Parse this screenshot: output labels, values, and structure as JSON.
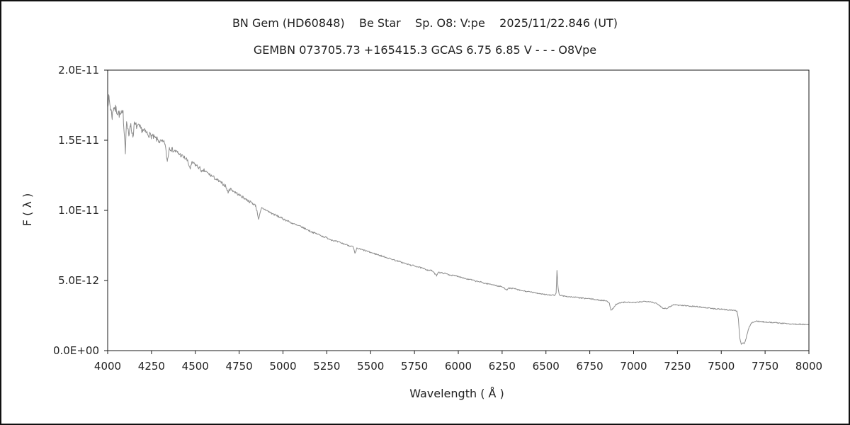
{
  "window": {
    "background": "#ffffff",
    "frame_border_color": "#111111"
  },
  "chart_data": {
    "type": "line",
    "title_line1": "BN Gem (HD60848)    Be Star    Sp. O8: V:pe    2025/11/22.846 (UT)",
    "title_line2": "GEMBN 073705.73 +165415.3 GCAS 6.75 6.85 V - - - O8Vpe",
    "xlabel": "Wavelength ( Å )",
    "ylabel": "F ( λ )",
    "xlim": [
      4000,
      8000
    ],
    "ylim_e12": [
      0,
      20
    ],
    "grid": false,
    "legend": "none",
    "line_color": "#8c8c8c",
    "axis_color": "#1a1a1a",
    "x_ticks": [
      4000,
      4250,
      4500,
      4750,
      5000,
      5250,
      5500,
      5750,
      6000,
      6250,
      6500,
      6750,
      7000,
      7250,
      7500,
      7750,
      8000
    ],
    "y_ticks": [
      {
        "value_e12": 0,
        "label": "0.0E+00"
      },
      {
        "value_e12": 5,
        "label": "5.0E-12"
      },
      {
        "value_e12": 10,
        "label": "1.0E-11"
      },
      {
        "value_e12": 15,
        "label": "1.5E-11"
      },
      {
        "value_e12": 20,
        "label": "2.0E-11"
      }
    ],
    "flux_unit_multiplier": 1e-12,
    "points_lambda_flux_e12": [
      [
        4000,
        17.7
      ],
      [
        4008,
        18.0
      ],
      [
        4016,
        17.3
      ],
      [
        4026,
        16.7
      ],
      [
        4034,
        17.4
      ],
      [
        4046,
        17.2
      ],
      [
        4058,
        17.0
      ],
      [
        4072,
        16.8
      ],
      [
        4088,
        16.9
      ],
      [
        4101,
        14.3
      ],
      [
        4108,
        16.4
      ],
      [
        4121,
        15.2
      ],
      [
        4128,
        16.2
      ],
      [
        4144,
        15.3
      ],
      [
        4152,
        16.1
      ],
      [
        4168,
        16.0
      ],
      [
        4182,
        15.9
      ],
      [
        4200,
        15.7
      ],
      [
        4226,
        15.5
      ],
      [
        4250,
        15.3
      ],
      [
        4276,
        15.1
      ],
      [
        4300,
        14.9
      ],
      [
        4326,
        14.8
      ],
      [
        4340,
        13.5
      ],
      [
        4352,
        14.5
      ],
      [
        4364,
        14.35
      ],
      [
        4388,
        14.2
      ],
      [
        4400,
        14.1
      ],
      [
        4426,
        13.85
      ],
      [
        4450,
        13.65
      ],
      [
        4471,
        13.0
      ],
      [
        4482,
        13.4
      ],
      [
        4500,
        13.25
      ],
      [
        4526,
        13.0
      ],
      [
        4542,
        12.7
      ],
      [
        4550,
        12.85
      ],
      [
        4576,
        12.6
      ],
      [
        4600,
        12.4
      ],
      [
        4626,
        12.15
      ],
      [
        4650,
        11.95
      ],
      [
        4672,
        11.75
      ],
      [
        4686,
        11.3
      ],
      [
        4700,
        11.55
      ],
      [
        4726,
        11.3
      ],
      [
        4750,
        11.1
      ],
      [
        4776,
        10.9
      ],
      [
        4800,
        10.7
      ],
      [
        4826,
        10.5
      ],
      [
        4844,
        10.35
      ],
      [
        4861,
        9.4
      ],
      [
        4878,
        10.15
      ],
      [
        4900,
        10.05
      ],
      [
        4926,
        9.85
      ],
      [
        4950,
        9.7
      ],
      [
        4976,
        9.55
      ],
      [
        5000,
        9.4
      ],
      [
        5026,
        9.25
      ],
      [
        5050,
        9.1
      ],
      [
        5076,
        8.95
      ],
      [
        5100,
        8.85
      ],
      [
        5126,
        8.7
      ],
      [
        5150,
        8.55
      ],
      [
        5176,
        8.4
      ],
      [
        5200,
        8.3
      ],
      [
        5226,
        8.15
      ],
      [
        5250,
        8.05
      ],
      [
        5276,
        7.9
      ],
      [
        5300,
        7.8
      ],
      [
        5326,
        7.7
      ],
      [
        5350,
        7.6
      ],
      [
        5376,
        7.5
      ],
      [
        5400,
        7.4
      ],
      [
        5411,
        6.9
      ],
      [
        5422,
        7.3
      ],
      [
        5450,
        7.2
      ],
      [
        5476,
        7.1
      ],
      [
        5500,
        7.0
      ],
      [
        5526,
        6.9
      ],
      [
        5550,
        6.8
      ],
      [
        5576,
        6.7
      ],
      [
        5600,
        6.6
      ],
      [
        5626,
        6.5
      ],
      [
        5650,
        6.4
      ],
      [
        5676,
        6.3
      ],
      [
        5700,
        6.2
      ],
      [
        5726,
        6.1
      ],
      [
        5750,
        6.05
      ],
      [
        5776,
        5.95
      ],
      [
        5800,
        5.85
      ],
      [
        5826,
        5.75
      ],
      [
        5850,
        5.7
      ],
      [
        5876,
        5.35
      ],
      [
        5886,
        5.6
      ],
      [
        5900,
        5.55
      ],
      [
        5926,
        5.5
      ],
      [
        5950,
        5.4
      ],
      [
        5976,
        5.35
      ],
      [
        6000,
        5.3
      ],
      [
        6026,
        5.2
      ],
      [
        6050,
        5.1
      ],
      [
        6076,
        5.05
      ],
      [
        6100,
        4.95
      ],
      [
        6126,
        4.9
      ],
      [
        6150,
        4.8
      ],
      [
        6176,
        4.75
      ],
      [
        6200,
        4.7
      ],
      [
        6226,
        4.6
      ],
      [
        6250,
        4.55
      ],
      [
        6276,
        4.35
      ],
      [
        6290,
        4.45
      ],
      [
        6300,
        4.45
      ],
      [
        6326,
        4.4
      ],
      [
        6350,
        4.3
      ],
      [
        6376,
        4.25
      ],
      [
        6400,
        4.2
      ],
      [
        6426,
        4.15
      ],
      [
        6450,
        4.1
      ],
      [
        6476,
        4.05
      ],
      [
        6500,
        4.0
      ],
      [
        6526,
        3.95
      ],
      [
        6552,
        3.95
      ],
      [
        6558,
        4.15
      ],
      [
        6563,
        5.75
      ],
      [
        6569,
        4.5
      ],
      [
        6576,
        3.95
      ],
      [
        6600,
        3.9
      ],
      [
        6626,
        3.85
      ],
      [
        6650,
        3.82
      ],
      [
        6676,
        3.8
      ],
      [
        6700,
        3.75
      ],
      [
        6726,
        3.72
      ],
      [
        6750,
        3.7
      ],
      [
        6776,
        3.65
      ],
      [
        6800,
        3.6
      ],
      [
        6826,
        3.58
      ],
      [
        6850,
        3.55
      ],
      [
        6862,
        3.35
      ],
      [
        6871,
        2.85
      ],
      [
        6884,
        3.05
      ],
      [
        6900,
        3.3
      ],
      [
        6926,
        3.42
      ],
      [
        6950,
        3.45
      ],
      [
        6976,
        3.44
      ],
      [
        7000,
        3.42
      ],
      [
        7026,
        3.45
      ],
      [
        7050,
        3.5
      ],
      [
        7076,
        3.52
      ],
      [
        7100,
        3.48
      ],
      [
        7126,
        3.38
      ],
      [
        7150,
        3.2
      ],
      [
        7164,
        3.05
      ],
      [
        7186,
        3.0
      ],
      [
        7200,
        3.1
      ],
      [
        7216,
        3.2
      ],
      [
        7230,
        3.28
      ],
      [
        7256,
        3.24
      ],
      [
        7280,
        3.22
      ],
      [
        7300,
        3.2
      ],
      [
        7326,
        3.17
      ],
      [
        7350,
        3.15
      ],
      [
        7376,
        3.12
      ],
      [
        7400,
        3.08
      ],
      [
        7426,
        3.04
      ],
      [
        7450,
        3.0
      ],
      [
        7476,
        2.97
      ],
      [
        7500,
        2.95
      ],
      [
        7526,
        2.92
      ],
      [
        7550,
        2.9
      ],
      [
        7576,
        2.87
      ],
      [
        7590,
        2.8
      ],
      [
        7598,
        2.2
      ],
      [
        7606,
        0.9
      ],
      [
        7614,
        0.45
      ],
      [
        7622,
        0.55
      ],
      [
        7632,
        0.5
      ],
      [
        7642,
        0.9
      ],
      [
        7652,
        1.4
      ],
      [
        7662,
        1.75
      ],
      [
        7672,
        1.95
      ],
      [
        7686,
        2.05
      ],
      [
        7700,
        2.1
      ],
      [
        7726,
        2.07
      ],
      [
        7750,
        2.05
      ],
      [
        7776,
        2.02
      ],
      [
        7800,
        2.0
      ],
      [
        7826,
        1.97
      ],
      [
        7850,
        1.95
      ],
      [
        7876,
        1.93
      ],
      [
        7900,
        1.9
      ],
      [
        7926,
        1.89
      ],
      [
        7950,
        1.88
      ],
      [
        7976,
        1.86
      ],
      [
        8000,
        1.85
      ]
    ],
    "noise": {
      "seed": 7,
      "base": 0.04,
      "blue_amp": 0.3,
      "blue_scale": 450
    }
  }
}
